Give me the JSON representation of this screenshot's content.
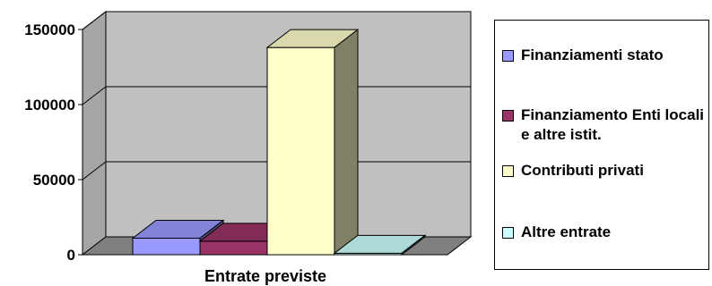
{
  "chart_data": {
    "type": "bar",
    "categories": [
      "Entrate previste"
    ],
    "series": [
      {
        "name": "Finanziamenti stato",
        "values": [
          11000
        ],
        "color": "#9999ff"
      },
      {
        "name": "Finanziamento Enti locali e altre istit.",
        "values": [
          9000
        ],
        "color": "#993366"
      },
      {
        "name": "Contributi privati",
        "values": [
          138000
        ],
        "color": "#ffffcc"
      },
      {
        "name": "Altre entrate",
        "values": [
          1000
        ],
        "color": "#ccffff"
      }
    ],
    "ylim": [
      0,
      150000
    ],
    "yticks": [
      "0",
      "50000",
      "100000",
      "150000"
    ],
    "ytick_values": [
      0,
      50000,
      100000,
      150000
    ],
    "grid": true,
    "wall_color": "#c0c0c0",
    "legend_position": "right",
    "title": "",
    "xlabel": "",
    "ylabel": ""
  }
}
